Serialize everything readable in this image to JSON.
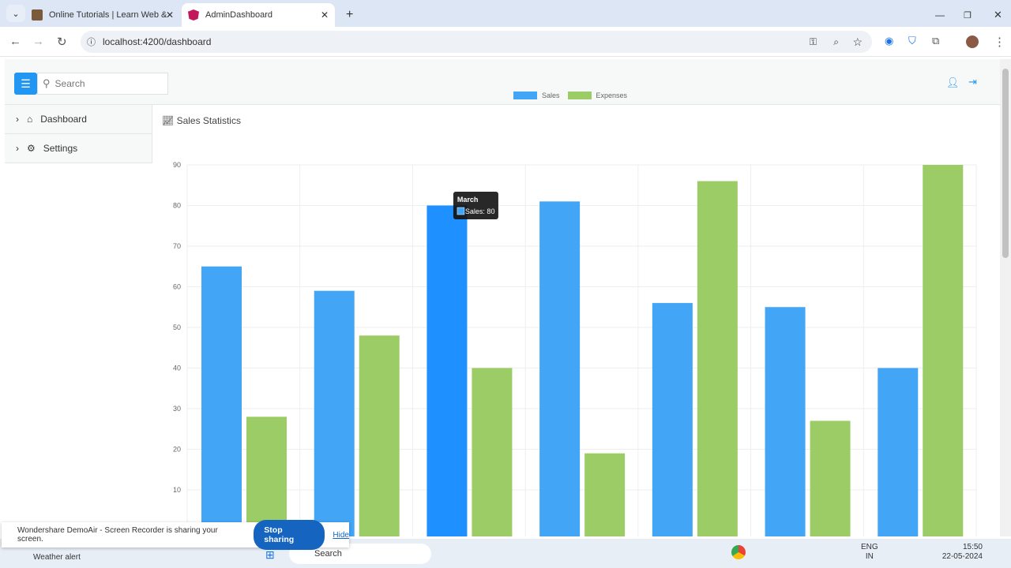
{
  "browser": {
    "tabs": [
      {
        "title": "Online Tutorials | Learn Web &"
      },
      {
        "title": "AdminDashboard",
        "active": true
      }
    ],
    "url": "localhost:4200/dashboard"
  },
  "header": {
    "search_placeholder": "Search"
  },
  "sidebar": {
    "items": [
      {
        "label": "Dashboard",
        "icon": "home-icon"
      },
      {
        "label": "Settings",
        "icon": "gear-icon"
      }
    ]
  },
  "card": {
    "title": "Sales Statistics"
  },
  "colors": {
    "sales": "#42a5f5",
    "sales_hover": "#1e90ff",
    "expenses": "#9ccc65",
    "accent": "#2196f3"
  },
  "chart_data": {
    "type": "bar",
    "ylim": [
      0,
      90
    ],
    "yticks": [
      10,
      20,
      30,
      40,
      50,
      60,
      70,
      80,
      90
    ],
    "grid": true,
    "legend": "top",
    "series": [
      {
        "name": "Sales",
        "values": [
          65,
          59,
          80,
          81,
          56,
          55,
          40
        ]
      },
      {
        "name": "Expenses",
        "values": [
          28,
          48,
          40,
          19,
          86,
          27,
          90
        ]
      }
    ],
    "tooltip": {
      "title": "March",
      "text": "Sales: 80"
    }
  },
  "share_bar": {
    "text": "Wondershare DemoAir - Screen Recorder is sharing your screen.",
    "stop": "Stop sharing",
    "hide": "Hide"
  },
  "taskbar": {
    "weather": "Weather alert",
    "search": "Search",
    "lang": "ENG",
    "region": "IN",
    "time": "15:50",
    "date": "22-05-2024"
  }
}
